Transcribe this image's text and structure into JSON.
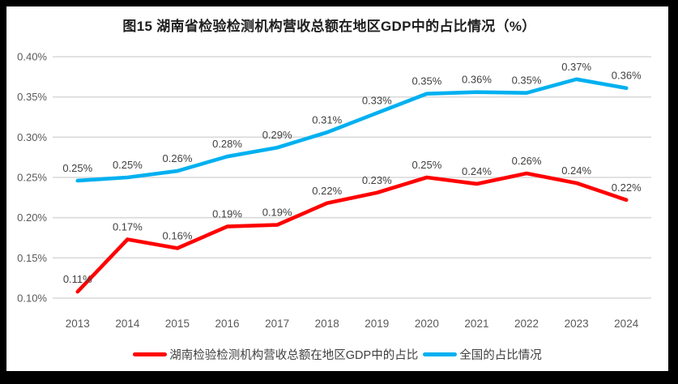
{
  "frame": {
    "background": "#000000",
    "panel_background": "#ffffff"
  },
  "chart_data": {
    "type": "line",
    "title": "图15 湖南省检验检测机构营收总额在地区GDP中的占比情况（%）",
    "categories": [
      "2013",
      "2014",
      "2015",
      "2016",
      "2017",
      "2018",
      "2019",
      "2020",
      "2021",
      "2022",
      "2023",
      "2024"
    ],
    "series": [
      {
        "name": "湖南检验检测机构营收总额在地区GDP中的占比",
        "color": "#ff0000",
        "values": [
          0.11,
          0.17,
          0.16,
          0.19,
          0.19,
          0.22,
          0.23,
          0.25,
          0.24,
          0.26,
          0.24,
          0.22
        ],
        "labels": [
          "0.11%",
          "0.17%",
          "0.16%",
          "0.19%",
          "0.19%",
          "0.22%",
          "0.23%",
          "0.25%",
          "0.24%",
          "0.26%",
          "0.24%",
          "0.22%"
        ],
        "plot_values": [
          0.108,
          0.173,
          0.162,
          0.189,
          0.191,
          0.218,
          0.231,
          0.25,
          0.242,
          0.255,
          0.243,
          0.222
        ]
      },
      {
        "name": "全国的占比情况",
        "color": "#00b0f0",
        "values": [
          0.25,
          0.25,
          0.26,
          0.28,
          0.29,
          0.31,
          0.33,
          0.35,
          0.36,
          0.35,
          0.37,
          0.36
        ],
        "labels": [
          "0.25%",
          "0.25%",
          "0.26%",
          "0.28%",
          "0.29%",
          "0.31%",
          "0.33%",
          "0.35%",
          "0.36%",
          "0.35%",
          "0.37%",
          "0.36%"
        ],
        "plot_values": [
          0.246,
          0.25,
          0.258,
          0.276,
          0.287,
          0.306,
          0.33,
          0.354,
          0.356,
          0.355,
          0.372,
          0.361
        ]
      }
    ],
    "y_axis": {
      "min": 0.1,
      "max": 0.4,
      "step": 0.05,
      "tick_labels": [
        "0.40%",
        "0.35%",
        "0.30%",
        "0.25%",
        "0.20%",
        "0.15%",
        "0.10%"
      ],
      "unit": "%"
    },
    "grid": true,
    "legend_position": "bottom",
    "colors": {
      "gridline": "#d9d9d9",
      "axis_text": "#595959",
      "data_label_text": "#404040",
      "title_text": "#1f1f1f",
      "legend_text": "#404040"
    }
  }
}
